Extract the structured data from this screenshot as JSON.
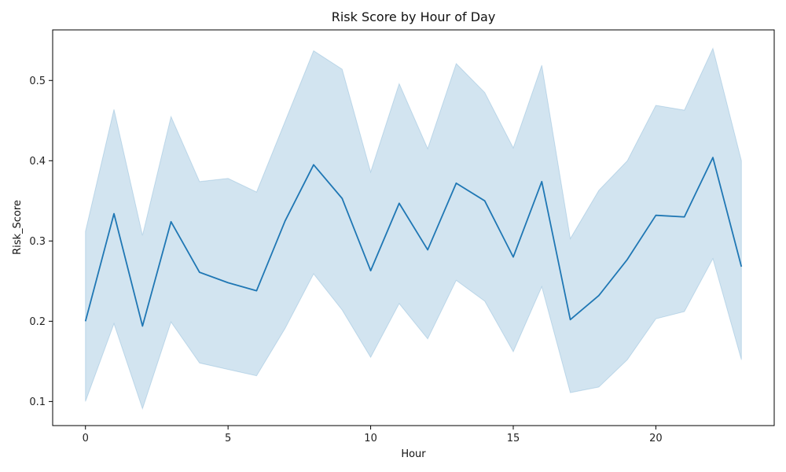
{
  "chart_data": {
    "type": "line",
    "title": "Risk Score by Hour of Day",
    "xlabel": "Hour",
    "ylabel": "Risk_Score",
    "xlim": [
      -1.15,
      24.15
    ],
    "ylim": [
      0.07,
      0.563
    ],
    "x_ticks": [
      0,
      5,
      10,
      15,
      20
    ],
    "y_ticks": [
      0.1,
      0.2,
      0.3,
      0.4,
      0.5
    ],
    "y_tick_labels": [
      "0.1",
      "0.2",
      "0.3",
      "0.4",
      "0.5"
    ],
    "grid": false,
    "line_color": "#1f77b4",
    "band_color": "#1f77b4",
    "x": [
      0,
      1,
      2,
      3,
      4,
      5,
      6,
      7,
      8,
      9,
      10,
      11,
      12,
      13,
      14,
      15,
      16,
      17,
      18,
      19,
      20,
      21,
      22,
      23
    ],
    "series": [
      {
        "values": [
          0.2,
          0.334,
          0.194,
          0.324,
          0.261,
          0.248,
          0.238,
          0.325,
          0.395,
          0.353,
          0.263,
          0.347,
          0.289,
          0.372,
          0.35,
          0.28,
          0.374,
          0.202,
          0.232,
          0.277,
          0.332,
          0.33,
          0.404,
          0.268
        ],
        "ci_lower": [
          0.1,
          0.197,
          0.091,
          0.199,
          0.148,
          0.14,
          0.132,
          0.191,
          0.259,
          0.214,
          0.155,
          0.222,
          0.178,
          0.251,
          0.225,
          0.162,
          0.243,
          0.111,
          0.118,
          0.152,
          0.203,
          0.212,
          0.278,
          0.152
        ],
        "ci_upper": [
          0.312,
          0.464,
          0.307,
          0.455,
          0.374,
          0.378,
          0.361,
          0.449,
          0.537,
          0.514,
          0.386,
          0.496,
          0.415,
          0.521,
          0.485,
          0.416,
          0.519,
          0.303,
          0.363,
          0.4,
          0.469,
          0.463,
          0.54,
          0.4
        ]
      }
    ]
  }
}
